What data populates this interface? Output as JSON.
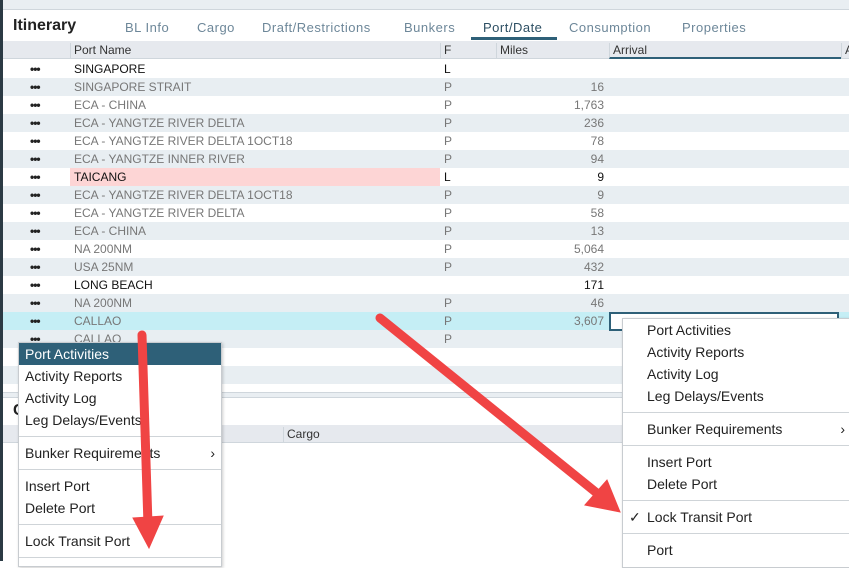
{
  "title": "Itinerary",
  "tabs": [
    {
      "label": "BL Info"
    },
    {
      "label": "Cargo"
    },
    {
      "label": "Draft/Restrictions"
    },
    {
      "label": "Bunkers"
    },
    {
      "label": "Port/Date"
    },
    {
      "label": "Consumption"
    },
    {
      "label": "Properties"
    }
  ],
  "active_tab": "Port/Date",
  "columns": {
    "port": "Port Name",
    "f": "F",
    "miles": "Miles",
    "arrival": "Arrival",
    "next": "A"
  },
  "rows": [
    {
      "port": "SINGAPORE",
      "f": "L",
      "miles": ""
    },
    {
      "port": "SINGAPORE STRAIT",
      "f": "P",
      "miles": "16"
    },
    {
      "port": "ECA - CHINA",
      "f": "P",
      "miles": "1,763"
    },
    {
      "port": "ECA - YANGTZE RIVER DELTA",
      "f": "P",
      "miles": "236"
    },
    {
      "port": "ECA - YANGTZE RIVER DELTA 1OCT18",
      "f": "P",
      "miles": "78"
    },
    {
      "port": "ECA - YANGTZE INNER RIVER",
      "f": "P",
      "miles": "94"
    },
    {
      "port": "TAICANG",
      "f": "L",
      "miles": "9"
    },
    {
      "port": "ECA - YANGTZE RIVER DELTA 1OCT18",
      "f": "P",
      "miles": "9"
    },
    {
      "port": "ECA - YANGTZE RIVER DELTA",
      "f": "P",
      "miles": "58"
    },
    {
      "port": "ECA - CHINA",
      "f": "P",
      "miles": "13"
    },
    {
      "port": "NA 200NM",
      "f": "P",
      "miles": "5,064"
    },
    {
      "port": "USA 25NM",
      "f": "P",
      "miles": "432"
    },
    {
      "port": "LONG BEACH",
      "f": "",
      "miles": "171"
    },
    {
      "port": "NA 200NM",
      "f": "P",
      "miles": "46"
    },
    {
      "port": "CALLAO",
      "f": "P",
      "miles": "3,607"
    },
    {
      "port": "CALLAO",
      "f": "P",
      "miles": ""
    }
  ],
  "row_more": "•••",
  "lower_panel": {
    "title_partial": "C",
    "column": "Cargo"
  },
  "left_menu": {
    "items": [
      "Port Activities",
      "Activity Reports",
      "Activity Log",
      "Leg Delays/Events"
    ],
    "bunker": "Bunker Requirements",
    "edit": [
      "Insert Port",
      "Delete Port"
    ],
    "lock": "Lock Transit Port",
    "chevron": "›"
  },
  "right_menu": {
    "items": [
      "Port Activities",
      "Activity Reports",
      "Activity Log",
      "Leg Delays/Events"
    ],
    "bunker": "Bunker Requirements",
    "edit": [
      "Insert Port",
      "Delete Port"
    ],
    "lock": "Lock Transit Port",
    "check": "✓",
    "last": "Port",
    "chevron": "›"
  },
  "colors": {
    "accent": "#2e6078",
    "highlight": "#c5eef5",
    "alert_row": "#fdd5d5",
    "arrow": "#f04444"
  }
}
